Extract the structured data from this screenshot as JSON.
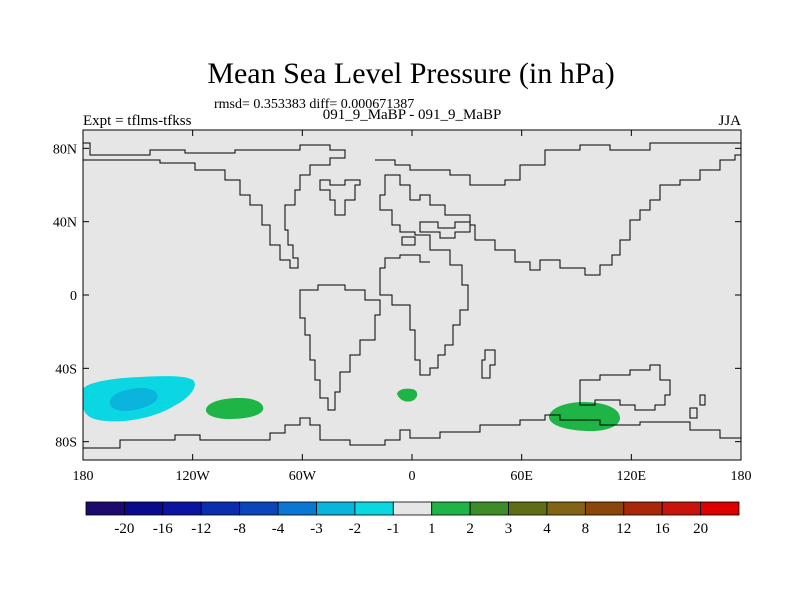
{
  "chart_data": {
    "type": "heatmap",
    "title": "Mean Sea Level Pressure (in hPa)",
    "stats_line": "rmsd= 0.353383 diff= 0.000671387",
    "comparison": "091_9_MaBP - 091_9_MaBP",
    "experiment": "Expt = tflms-tfkss",
    "season": "JJA",
    "projection": "cylindrical equidistant",
    "xlim": [
      -180,
      180
    ],
    "ylim": [
      -90,
      90
    ],
    "x_ticks": [
      {
        "value": -180,
        "label": "180"
      },
      {
        "value": -120,
        "label": "120W"
      },
      {
        "value": -60,
        "label": "60W"
      },
      {
        "value": 0,
        "label": "0"
      },
      {
        "value": 60,
        "label": "60E"
      },
      {
        "value": 120,
        "label": "120E"
      },
      {
        "value": 180,
        "label": "180"
      }
    ],
    "y_ticks": [
      {
        "value": 80,
        "label": "80N"
      },
      {
        "value": 40,
        "label": "40N"
      },
      {
        "value": 0,
        "label": "0"
      },
      {
        "value": -40,
        "label": "40S"
      },
      {
        "value": -80,
        "label": "80S"
      }
    ],
    "colorbar": {
      "labels": [
        "-20",
        "-16",
        "-12",
        "-8",
        "-4",
        "-3",
        "-2",
        "-1",
        "1",
        "2",
        "3",
        "4",
        "8",
        "12",
        "16",
        "20"
      ],
      "colors": [
        "#1e0a6e",
        "#0a0a8c",
        "#0a14a0",
        "#0a2eaf",
        "#0a46b9",
        "#0a78d2",
        "#0ab4dc",
        "#0ad7e1",
        "#e6e6e6",
        "#1eb446",
        "#3c8c28",
        "#5f6e14",
        "#826414",
        "#8c460a",
        "#aa280a",
        "#c8140a",
        "#dc0000"
      ]
    },
    "filled_anomalies": [
      {
        "name": "south-pacific-negative-outer",
        "level": "-2 to -1",
        "lon_range": [
          -180,
          -138
        ],
        "lat_range": [
          -70,
          -49
        ],
        "color": "#0ad7e1"
      },
      {
        "name": "south-pacific-negative-inner",
        "level": "-3 to -2",
        "lon_range": [
          -168,
          -150
        ],
        "lat_range": [
          -63,
          -57
        ],
        "color": "#0ab4dc"
      },
      {
        "name": "south-pacific-positive",
        "level": "1 to 2",
        "lon_range": [
          -112,
          -83
        ],
        "lat_range": [
          -68,
          -58
        ],
        "color": "#1eb446"
      },
      {
        "name": "south-atlantic-positive",
        "level": "1 to 2",
        "lon_range": [
          -8,
          2
        ],
        "lat_range": [
          -59,
          -53
        ],
        "color": "#1eb446"
      },
      {
        "name": "indian-ocean-positive",
        "level": "1 to 2",
        "lon_range": [
          75,
          113
        ],
        "lat_range": [
          -75,
          -58
        ],
        "color": "#1eb446"
      }
    ]
  }
}
